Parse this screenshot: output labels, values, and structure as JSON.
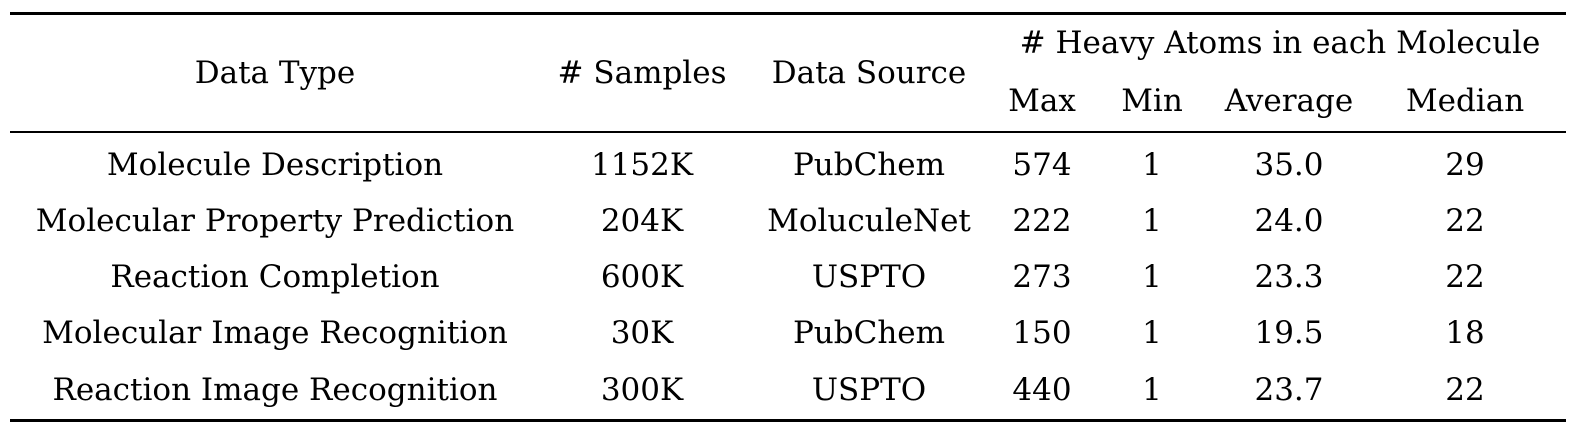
{
  "table": {
    "headers": {
      "data_type": "Data Type",
      "samples": "# Samples",
      "data_source": "Data Source",
      "heavy_atoms_group": "# Heavy Atoms in each Molecule",
      "max": "Max",
      "min": "Min",
      "average": "Average",
      "median": "Median"
    },
    "rows": [
      {
        "data_type": "Molecule Description",
        "samples": "1152K",
        "data_source": "PubChem",
        "max": "574",
        "min": "1",
        "average": "35.0",
        "median": "29"
      },
      {
        "data_type": "Molecular Property Prediction",
        "samples": "204K",
        "data_source": "MoluculeNet",
        "max": "222",
        "min": "1",
        "average": "24.0",
        "median": "22"
      },
      {
        "data_type": "Reaction Completion",
        "samples": "600K",
        "data_source": "USPTO",
        "max": "273",
        "min": "1",
        "average": "23.3",
        "median": "22"
      },
      {
        "data_type": "Molecular Image Recognition",
        "samples": "30K",
        "data_source": "PubChem",
        "max": "150",
        "min": "1",
        "average": "19.5",
        "median": "18"
      },
      {
        "data_type": "Reaction Image Recognition",
        "samples": "300K",
        "data_source": "USPTO",
        "max": "440",
        "min": "1",
        "average": "23.7",
        "median": "22"
      }
    ]
  }
}
